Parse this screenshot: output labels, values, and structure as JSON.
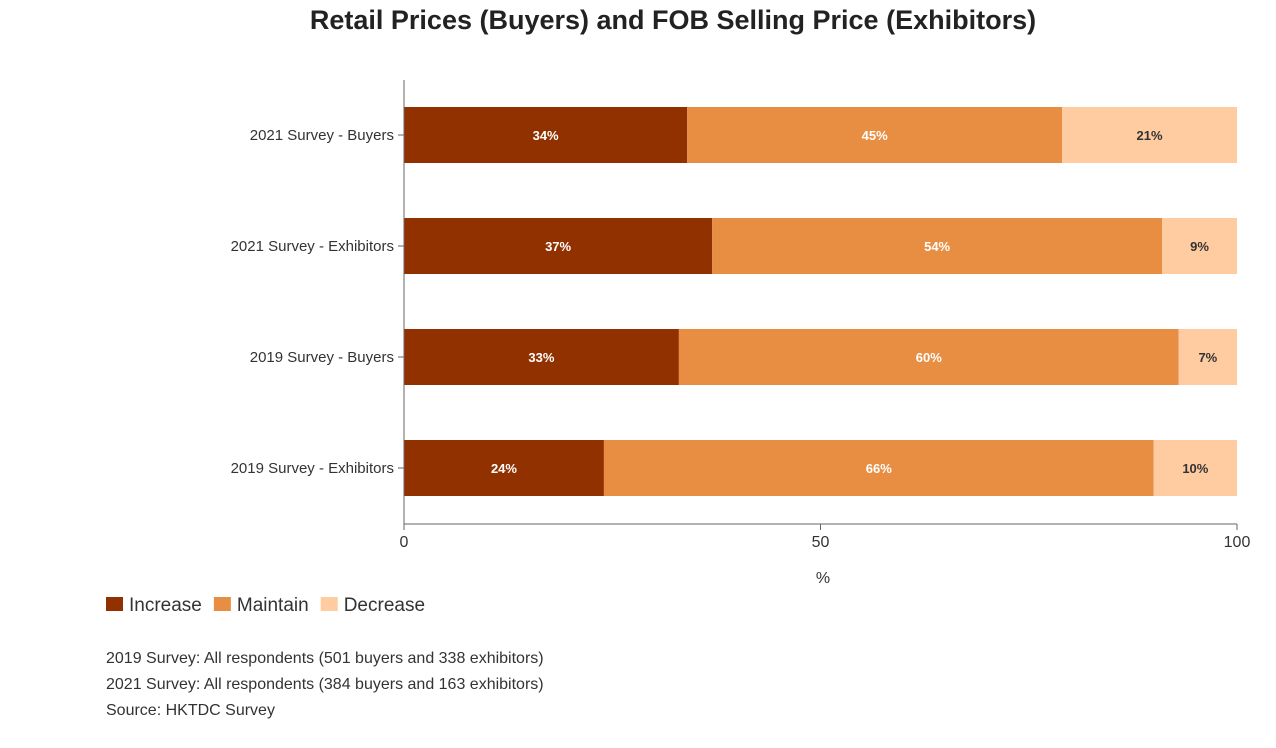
{
  "chart_data": {
    "type": "bar",
    "orientation": "horizontal",
    "stacked": true,
    "title": "Retail Prices (Buyers) and FOB Selling Price (Exhibitors)",
    "categories": [
      "2021 Survey - Buyers",
      "2021 Survey - Exhibitors",
      "2019 Survey - Buyers",
      "2019 Survey - Exhibitors"
    ],
    "series": [
      {
        "name": "Increase",
        "color": "#923100",
        "values": [
          34,
          37,
          33,
          24
        ],
        "label_color": "#ffffff"
      },
      {
        "name": "Maintain",
        "color": "#E88E43",
        "values": [
          45,
          54,
          60,
          66
        ],
        "label_color": "#ffffff"
      },
      {
        "name": "Decrease",
        "color": "#FFCBA0",
        "values": [
          21,
          9,
          7,
          10
        ],
        "label_color": "#333333"
      }
    ],
    "xlabel": "%",
    "ylabel": "",
    "xlim": [
      0,
      100
    ],
    "xticks": [
      "0",
      "50",
      "100"
    ],
    "grid": false,
    "legend_position": "bottom-left",
    "value_suffix": "%"
  },
  "notes": [
    "2019 Survey: All respondents (501 buyers and 338 exhibitors)",
    "2021 Survey: All respondents (384 buyers and 163 exhibitors)",
    "Source: HKTDC Survey"
  ]
}
